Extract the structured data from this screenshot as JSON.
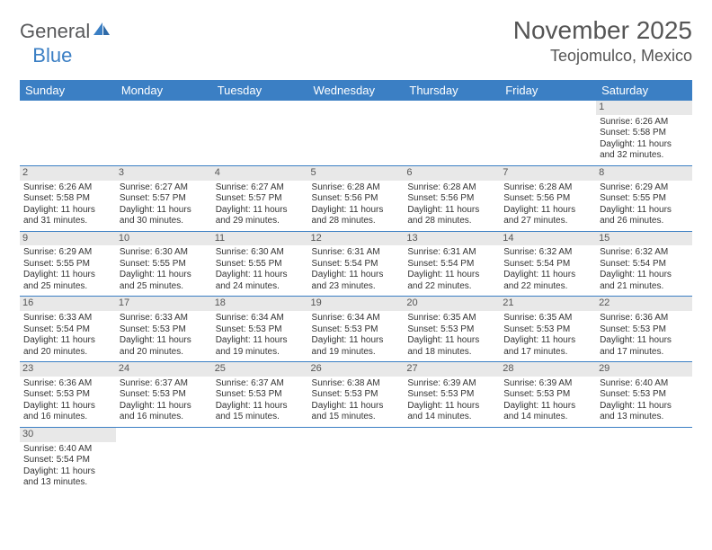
{
  "logo": {
    "part1": "General",
    "part2": "Blue"
  },
  "title": "November 2025",
  "location": "Teojomulco, Mexico",
  "colors": {
    "header_bg": "#3b7fc4",
    "header_text": "#ffffff",
    "daynum_bg": "#e8e8e8",
    "border": "#3b7fc4",
    "text": "#333333",
    "title_text": "#555555"
  },
  "weekdays": [
    "Sunday",
    "Monday",
    "Tuesday",
    "Wednesday",
    "Thursday",
    "Friday",
    "Saturday"
  ],
  "grid": {
    "first_weekday_index": 6,
    "rows": 6,
    "cols": 7
  },
  "days": [
    {
      "n": 1,
      "sr": "6:26 AM",
      "ss": "5:58 PM",
      "dl": "11 hours and 32 minutes."
    },
    {
      "n": 2,
      "sr": "6:26 AM",
      "ss": "5:58 PM",
      "dl": "11 hours and 31 minutes."
    },
    {
      "n": 3,
      "sr": "6:27 AM",
      "ss": "5:57 PM",
      "dl": "11 hours and 30 minutes."
    },
    {
      "n": 4,
      "sr": "6:27 AM",
      "ss": "5:57 PM",
      "dl": "11 hours and 29 minutes."
    },
    {
      "n": 5,
      "sr": "6:28 AM",
      "ss": "5:56 PM",
      "dl": "11 hours and 28 minutes."
    },
    {
      "n": 6,
      "sr": "6:28 AM",
      "ss": "5:56 PM",
      "dl": "11 hours and 28 minutes."
    },
    {
      "n": 7,
      "sr": "6:28 AM",
      "ss": "5:56 PM",
      "dl": "11 hours and 27 minutes."
    },
    {
      "n": 8,
      "sr": "6:29 AM",
      "ss": "5:55 PM",
      "dl": "11 hours and 26 minutes."
    },
    {
      "n": 9,
      "sr": "6:29 AM",
      "ss": "5:55 PM",
      "dl": "11 hours and 25 minutes."
    },
    {
      "n": 10,
      "sr": "6:30 AM",
      "ss": "5:55 PM",
      "dl": "11 hours and 25 minutes."
    },
    {
      "n": 11,
      "sr": "6:30 AM",
      "ss": "5:55 PM",
      "dl": "11 hours and 24 minutes."
    },
    {
      "n": 12,
      "sr": "6:31 AM",
      "ss": "5:54 PM",
      "dl": "11 hours and 23 minutes."
    },
    {
      "n": 13,
      "sr": "6:31 AM",
      "ss": "5:54 PM",
      "dl": "11 hours and 22 minutes."
    },
    {
      "n": 14,
      "sr": "6:32 AM",
      "ss": "5:54 PM",
      "dl": "11 hours and 22 minutes."
    },
    {
      "n": 15,
      "sr": "6:32 AM",
      "ss": "5:54 PM",
      "dl": "11 hours and 21 minutes."
    },
    {
      "n": 16,
      "sr": "6:33 AM",
      "ss": "5:54 PM",
      "dl": "11 hours and 20 minutes."
    },
    {
      "n": 17,
      "sr": "6:33 AM",
      "ss": "5:53 PM",
      "dl": "11 hours and 20 minutes."
    },
    {
      "n": 18,
      "sr": "6:34 AM",
      "ss": "5:53 PM",
      "dl": "11 hours and 19 minutes."
    },
    {
      "n": 19,
      "sr": "6:34 AM",
      "ss": "5:53 PM",
      "dl": "11 hours and 19 minutes."
    },
    {
      "n": 20,
      "sr": "6:35 AM",
      "ss": "5:53 PM",
      "dl": "11 hours and 18 minutes."
    },
    {
      "n": 21,
      "sr": "6:35 AM",
      "ss": "5:53 PM",
      "dl": "11 hours and 17 minutes."
    },
    {
      "n": 22,
      "sr": "6:36 AM",
      "ss": "5:53 PM",
      "dl": "11 hours and 17 minutes."
    },
    {
      "n": 23,
      "sr": "6:36 AM",
      "ss": "5:53 PM",
      "dl": "11 hours and 16 minutes."
    },
    {
      "n": 24,
      "sr": "6:37 AM",
      "ss": "5:53 PM",
      "dl": "11 hours and 16 minutes."
    },
    {
      "n": 25,
      "sr": "6:37 AM",
      "ss": "5:53 PM",
      "dl": "11 hours and 15 minutes."
    },
    {
      "n": 26,
      "sr": "6:38 AM",
      "ss": "5:53 PM",
      "dl": "11 hours and 15 minutes."
    },
    {
      "n": 27,
      "sr": "6:39 AM",
      "ss": "5:53 PM",
      "dl": "11 hours and 14 minutes."
    },
    {
      "n": 28,
      "sr": "6:39 AM",
      "ss": "5:53 PM",
      "dl": "11 hours and 14 minutes."
    },
    {
      "n": 29,
      "sr": "6:40 AM",
      "ss": "5:53 PM",
      "dl": "11 hours and 13 minutes."
    },
    {
      "n": 30,
      "sr": "6:40 AM",
      "ss": "5:54 PM",
      "dl": "11 hours and 13 minutes."
    }
  ],
  "labels": {
    "sunrise": "Sunrise:",
    "sunset": "Sunset:",
    "daylight": "Daylight:"
  }
}
